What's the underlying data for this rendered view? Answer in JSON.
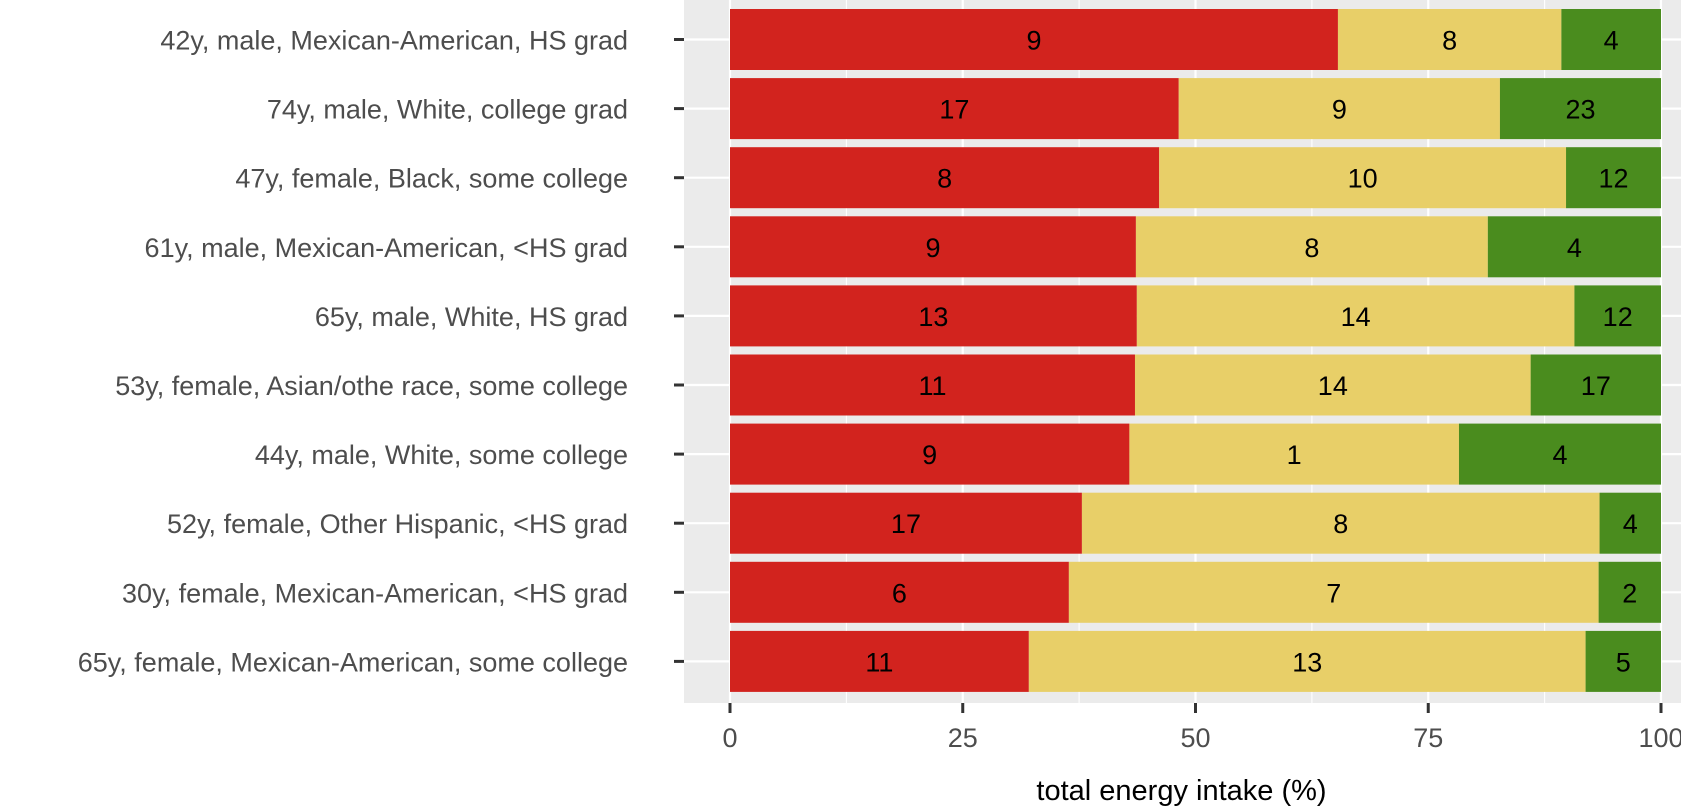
{
  "chart_data": {
    "type": "bar",
    "orientation": "horizontal",
    "stacked": true,
    "xlabel": "total energy intake (%)",
    "xlim": [
      0,
      100
    ],
    "xticks": [
      "0",
      "25",
      "50",
      "75",
      "100"
    ],
    "grid": true,
    "legend": "none",
    "colors": {
      "red": "#d2231e",
      "yellow": "#e8cf68",
      "green": "#4a8c1e",
      "panel": "#ebebeb",
      "grid": "#ffffff"
    },
    "rows": [
      {
        "label": "42y, male, Mexican-American, HS grad",
        "red": {
          "value": 65.3,
          "label": "9"
        },
        "yellow": {
          "value": 24.0,
          "label": "8"
        },
        "green": {
          "value": 10.7,
          "label": "4"
        }
      },
      {
        "label": "74y, male, White, college grad",
        "red": {
          "value": 48.2,
          "label": "17"
        },
        "yellow": {
          "value": 34.5,
          "label": "9"
        },
        "green": {
          "value": 17.3,
          "label": "23"
        }
      },
      {
        "label": "47y, female, Black, some college",
        "red": {
          "value": 46.1,
          "label": "8"
        },
        "yellow": {
          "value": 43.7,
          "label": "10"
        },
        "green": {
          "value": 10.2,
          "label": "12"
        }
      },
      {
        "label": "61y, male, Mexican-American, <HS grad",
        "red": {
          "value": 43.6,
          "label": "9"
        },
        "yellow": {
          "value": 37.8,
          "label": "8"
        },
        "green": {
          "value": 18.6,
          "label": "4"
        }
      },
      {
        "label": "65y, male, White, HS grad",
        "red": {
          "value": 43.7,
          "label": "13"
        },
        "yellow": {
          "value": 47.0,
          "label": "14"
        },
        "green": {
          "value": 9.3,
          "label": "12"
        }
      },
      {
        "label": "53y, female, Asian/othe race, some college",
        "red": {
          "value": 43.5,
          "label": "11"
        },
        "yellow": {
          "value": 42.5,
          "label": "14"
        },
        "green": {
          "value": 14.0,
          "label": "17"
        }
      },
      {
        "label": "44y, male, White, some college",
        "red": {
          "value": 42.9,
          "label": "9"
        },
        "yellow": {
          "value": 35.4,
          "label": "1"
        },
        "green": {
          "value": 21.7,
          "label": "4"
        }
      },
      {
        "label": "52y, female, Other Hispanic, <HS grad",
        "red": {
          "value": 37.8,
          "label": "17"
        },
        "yellow": {
          "value": 55.6,
          "label": "8"
        },
        "green": {
          "value": 6.6,
          "label": "4"
        }
      },
      {
        "label": "30y, female, Mexican-American, <HS grad",
        "red": {
          "value": 36.4,
          "label": "6"
        },
        "yellow": {
          "value": 56.9,
          "label": "7"
        },
        "green": {
          "value": 6.7,
          "label": "2"
        }
      },
      {
        "label": "65y, female, Mexican-American, some college",
        "red": {
          "value": 32.1,
          "label": "11"
        },
        "yellow": {
          "value": 59.8,
          "label": "13"
        },
        "green": {
          "value": 8.1,
          "label": "5"
        }
      }
    ]
  }
}
